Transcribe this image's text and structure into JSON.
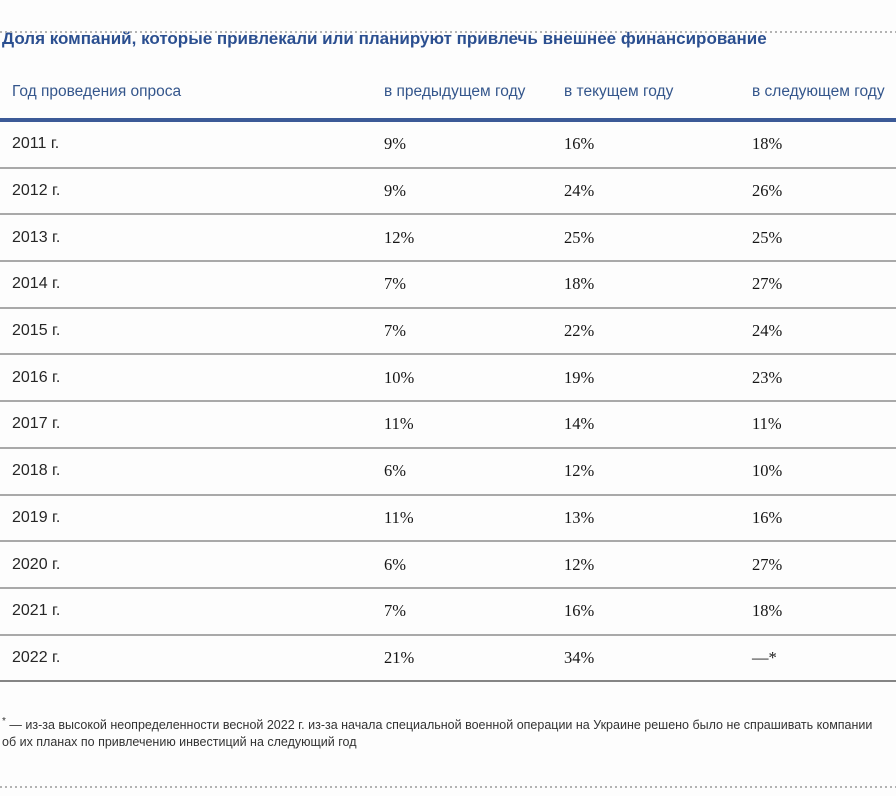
{
  "title": "Доля компаний, которые привлекали или планируют привлечь внешнее финансирование",
  "chart_data": {
    "type": "table",
    "title": "Доля компаний, которые привлекали или планируют привлечь внешнее финансирование",
    "columns": [
      "Год проведения опроса",
      "в предыдущем году",
      "в текущем году",
      "в следующем году"
    ],
    "rows": [
      [
        "2011 г.",
        "9%",
        "16%",
        "18%"
      ],
      [
        "2012 г.",
        "9%",
        "24%",
        "26%"
      ],
      [
        "2013 г.",
        "12%",
        "25%",
        "25%"
      ],
      [
        "2014 г.",
        "7%",
        "18%",
        "27%"
      ],
      [
        "2015 г.",
        "7%",
        "22%",
        "24%"
      ],
      [
        "2016 г.",
        "10%",
        "19%",
        "23%"
      ],
      [
        "2017 г.",
        "11%",
        "14%",
        "11%"
      ],
      [
        "2018 г.",
        "6%",
        "12%",
        "10%"
      ],
      [
        "2019 г.",
        "11%",
        "13%",
        "16%"
      ],
      [
        "2020 г.",
        "6%",
        "12%",
        "27%"
      ],
      [
        "2021 г.",
        "7%",
        "16%",
        "18%"
      ],
      [
        "2022 г.",
        "21%",
        "34%",
        "—*"
      ]
    ],
    "values_unit": "%",
    "series": [
      {
        "name": "в предыдущем году",
        "values": [
          9,
          9,
          12,
          7,
          7,
          10,
          11,
          6,
          11,
          6,
          7,
          21
        ]
      },
      {
        "name": "в текущем году",
        "values": [
          16,
          24,
          25,
          18,
          22,
          19,
          14,
          12,
          13,
          12,
          16,
          34
        ]
      },
      {
        "name": "в следующем году",
        "values": [
          18,
          26,
          25,
          27,
          24,
          23,
          11,
          10,
          16,
          27,
          18,
          null
        ]
      }
    ],
    "categories": [
      "2011",
      "2012",
      "2013",
      "2014",
      "2015",
      "2016",
      "2017",
      "2018",
      "2019",
      "2020",
      "2021",
      "2022"
    ],
    "footnote": "* — из-за высокой неопределенности весной 2022 г. из-за начала специальной военной операции на Украине решено было не спрашивать компании об их планах по привлечению инвестиций на следующий год"
  },
  "footnote": {
    "marker": "*",
    "text": " — из-за высокой неопределенности весной 2022 г. из-за начала специальной военной операции на Украине решено было не спрашивать компании об их планах по привлечению инвестиций на следующий год"
  },
  "colors": {
    "title_blue": "#2b4f90",
    "header_blue": "#34568c",
    "header_rule_navy": "#3c5a97",
    "row_separator_gray": "#a9a9a9",
    "dotted_rule_gray": "#b3b3b3"
  }
}
